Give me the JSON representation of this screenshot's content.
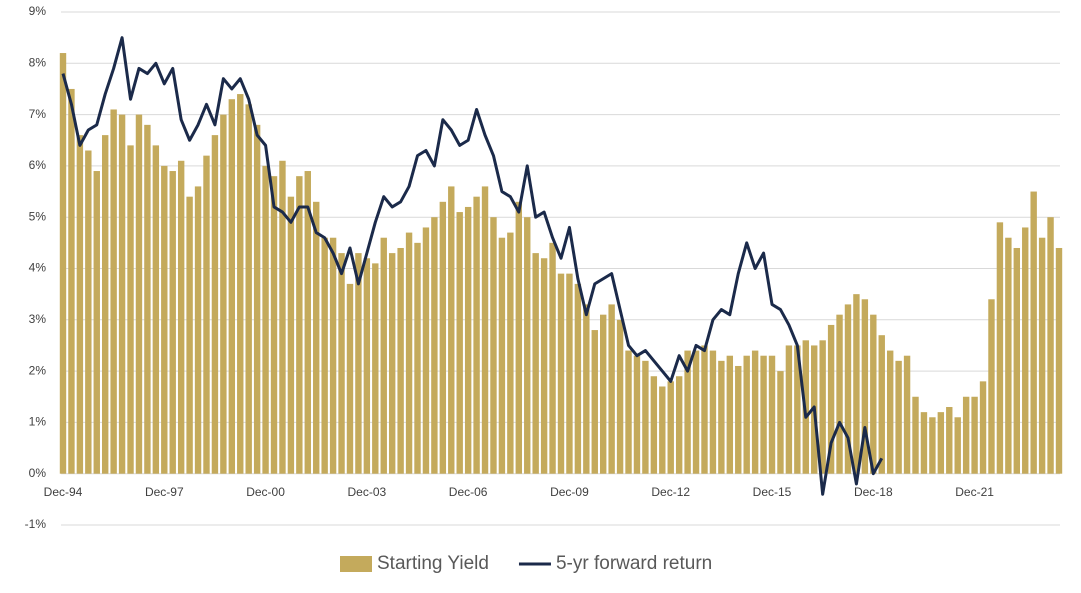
{
  "chart_data": {
    "type": "bar-line",
    "categories": [
      "Dec-94",
      null,
      null,
      null,
      null,
      null,
      null,
      null,
      null,
      null,
      null,
      null,
      "Dec-97",
      null,
      null,
      null,
      null,
      null,
      null,
      null,
      null,
      null,
      null,
      null,
      "Dec-00",
      null,
      null,
      null,
      null,
      null,
      null,
      null,
      null,
      null,
      null,
      null,
      "Dec-03",
      null,
      null,
      null,
      null,
      null,
      null,
      null,
      null,
      null,
      null,
      null,
      "Dec-06",
      null,
      null,
      null,
      null,
      null,
      null,
      null,
      null,
      null,
      null,
      null,
      "Dec-09",
      null,
      null,
      null,
      null,
      null,
      null,
      null,
      null,
      null,
      null,
      null,
      "Dec-12",
      null,
      null,
      null,
      null,
      null,
      null,
      null,
      null,
      null,
      null,
      null,
      "Dec-15",
      null,
      null,
      null,
      null,
      null,
      null,
      null,
      null,
      null,
      null,
      null,
      "Dec-18",
      null,
      null,
      null,
      null,
      null,
      null,
      null,
      null,
      null,
      null,
      null,
      "Dec-21",
      null,
      null,
      null,
      null,
      null,
      null,
      null,
      null,
      null,
      null
    ],
    "series": [
      {
        "name": "Starting Yield",
        "type": "bar",
        "color": "#c4aa5c",
        "values": [
          8.2,
          7.5,
          6.6,
          6.3,
          5.9,
          6.6,
          7.1,
          7.0,
          6.4,
          7.0,
          6.8,
          6.4,
          6.0,
          5.9,
          6.1,
          5.4,
          5.6,
          6.2,
          6.6,
          7.0,
          7.3,
          7.4,
          7.2,
          6.8,
          6.0,
          5.8,
          6.1,
          5.4,
          5.8,
          5.9,
          5.3,
          4.6,
          4.6,
          4.3,
          3.7,
          4.3,
          4.2,
          4.1,
          4.6,
          4.3,
          4.4,
          4.7,
          4.5,
          4.8,
          5.0,
          5.3,
          5.6,
          5.1,
          5.2,
          5.4,
          5.6,
          5.0,
          4.6,
          4.7,
          5.3,
          5.0,
          4.3,
          4.2,
          4.5,
          3.9,
          3.9,
          3.7,
          3.3,
          2.8,
          3.1,
          3.3,
          3.0,
          2.4,
          2.3,
          2.2,
          1.9,
          1.7,
          1.8,
          1.9,
          2.4,
          2.4,
          2.5,
          2.4,
          2.2,
          2.3,
          2.1,
          2.3,
          2.4,
          2.3,
          2.3,
          2.0,
          2.5,
          2.5,
          2.6,
          2.5,
          2.6,
          2.9,
          3.1,
          3.3,
          3.5,
          3.4,
          3.1,
          2.7,
          2.4,
          2.2,
          2.3,
          1.5,
          1.2,
          1.1,
          1.2,
          1.3,
          1.1,
          1.5,
          1.5,
          1.8,
          3.4,
          4.9,
          4.6,
          4.4,
          4.8,
          5.5,
          4.6,
          5.0,
          4.4
        ]
      },
      {
        "name": "5-yr forward return",
        "type": "line",
        "color": "#1b2a4a",
        "values": [
          7.8,
          7.2,
          6.4,
          6.7,
          6.8,
          7.4,
          7.9,
          8.5,
          7.3,
          7.9,
          7.8,
          8.0,
          7.6,
          7.9,
          6.9,
          6.5,
          6.8,
          7.2,
          6.8,
          7.7,
          7.5,
          7.7,
          7.3,
          6.6,
          6.4,
          5.2,
          5.1,
          4.9,
          5.2,
          5.2,
          4.7,
          4.6,
          4.3,
          3.9,
          4.4,
          3.7,
          4.3,
          4.9,
          5.4,
          5.2,
          5.3,
          5.6,
          6.2,
          6.3,
          6.0,
          6.9,
          6.7,
          6.4,
          6.5,
          7.1,
          6.6,
          6.2,
          5.5,
          5.4,
          5.1,
          6.0,
          5.0,
          5.1,
          4.6,
          4.2,
          4.8,
          3.8,
          3.1,
          3.7,
          3.8,
          3.9,
          3.2,
          2.5,
          2.3,
          2.4,
          2.2,
          2.0,
          1.8,
          2.3,
          2.0,
          2.5,
          2.4,
          3.0,
          3.2,
          3.1,
          3.9,
          4.5,
          4.0,
          4.3,
          3.3,
          3.2,
          2.9,
          2.5,
          1.1,
          1.3,
          -0.4,
          0.6,
          1.0,
          0.7,
          -0.2,
          0.9,
          0.0,
          0.3,
          null,
          null,
          null,
          null,
          null,
          null,
          null,
          null,
          null,
          null,
          null,
          null,
          null,
          null,
          null,
          null,
          null,
          null,
          null,
          null,
          null
        ]
      }
    ],
    "ylim": [
      -1,
      9
    ],
    "yticks": [
      {
        "value": -1,
        "label": "-1%"
      },
      {
        "value": 0,
        "label": "0%"
      },
      {
        "value": 1,
        "label": "1%"
      },
      {
        "value": 2,
        "label": "2%"
      },
      {
        "value": 3,
        "label": "3%"
      },
      {
        "value": 4,
        "label": "4%"
      },
      {
        "value": 5,
        "label": "5%"
      },
      {
        "value": 6,
        "label": "6%"
      },
      {
        "value": 7,
        "label": "7%"
      },
      {
        "value": 8,
        "label": "8%"
      },
      {
        "value": 9,
        "label": "9%"
      }
    ],
    "grid": true,
    "legend": "bottom"
  }
}
